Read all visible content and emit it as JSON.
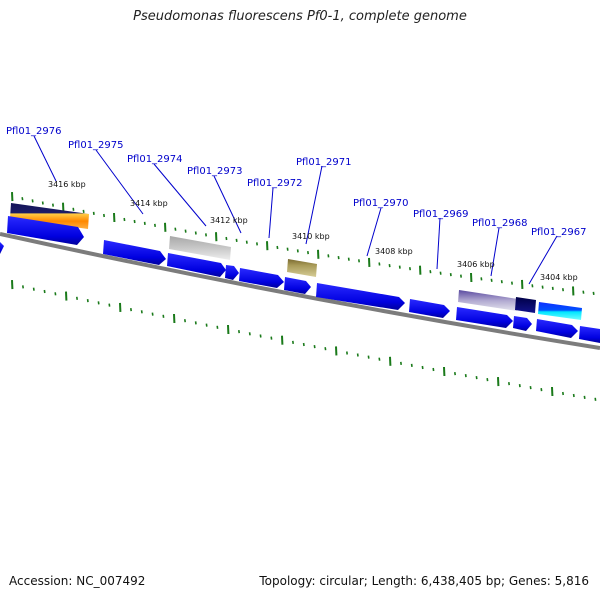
{
  "title": "Pseudomonas fluorescens Pf0-1, complete genome",
  "footer": {
    "accession": "Accession: NC_007492",
    "summary": "Topology: circular; Length: 6,438,405 bp; Genes: 5,816"
  },
  "colors": {
    "gene_label": "#0000cc",
    "backbone": "#777777",
    "tick": "#1a7a1a",
    "cds": "#0000ee"
  },
  "gene_labels": [
    "Pfl01_2976",
    "Pfl01_2975",
    "Pfl01_2974",
    "Pfl01_2973",
    "Pfl01_2972",
    "Pfl01_2971",
    "Pfl01_2970",
    "Pfl01_2969",
    "Pfl01_2968",
    "Pfl01_2967"
  ],
  "kbp_labels": [
    "3416 kbp",
    "3414 kbp",
    "3412 kbp",
    "3410 kbp",
    "3408 kbp",
    "3406 kbp",
    "3404 kbp"
  ]
}
